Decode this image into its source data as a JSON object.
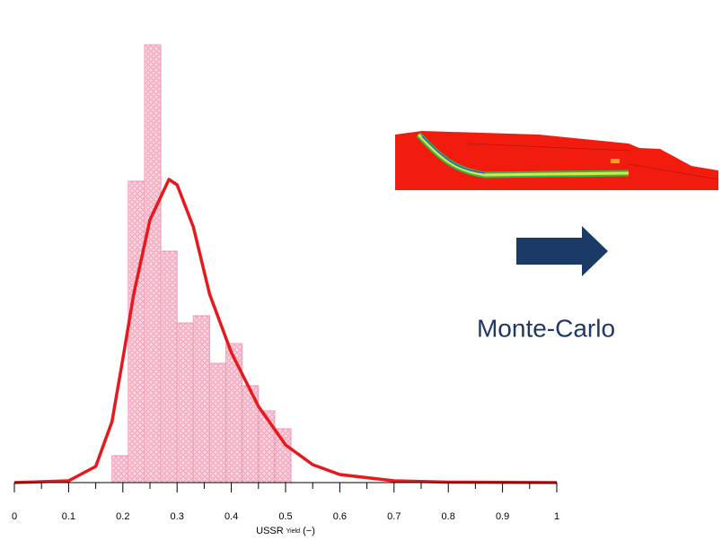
{
  "chart_data": {
    "type": "histogram",
    "bins": [
      0.18,
      0.21,
      0.24,
      0.27,
      0.3,
      0.33,
      0.36,
      0.39,
      0.42,
      0.45,
      0.48,
      0.51
    ],
    "values": [
      30,
      336,
      488,
      258,
      178,
      186,
      133,
      155,
      108,
      80,
      60
    ],
    "color": "#f29ab4",
    "curve": {
      "color": "#e8191e",
      "x": [
        0,
        0.1,
        0.15,
        0.18,
        0.2,
        0.22,
        0.25,
        0.285,
        0.3,
        0.33,
        0.36,
        0.4,
        0.45,
        0.5,
        0.55,
        0.6,
        0.7,
        0.8,
        1
      ],
      "y": [
        0,
        2,
        18,
        68,
        138,
        210,
        293,
        338,
        332,
        285,
        210,
        145,
        85,
        42,
        20,
        9,
        2,
        0.5,
        0
      ]
    },
    "xlim": [
      0,
      1
    ],
    "ylim": [
      0,
      500
    ],
    "xticks": [
      0,
      0.1,
      0.2,
      0.3,
      0.4,
      0.5,
      0.6,
      0.7,
      0.8,
      0.9,
      1
    ],
    "xminorticks": [
      0.05,
      0.15,
      0.25,
      0.35,
      0.45,
      0.55,
      0.65,
      0.75,
      0.85,
      0.95
    ],
    "xlabel": "USSR",
    "xlabel_subscript": "Yield",
    "xlabel_unit": "(−)",
    "annotation": "Monte-Carlo"
  }
}
